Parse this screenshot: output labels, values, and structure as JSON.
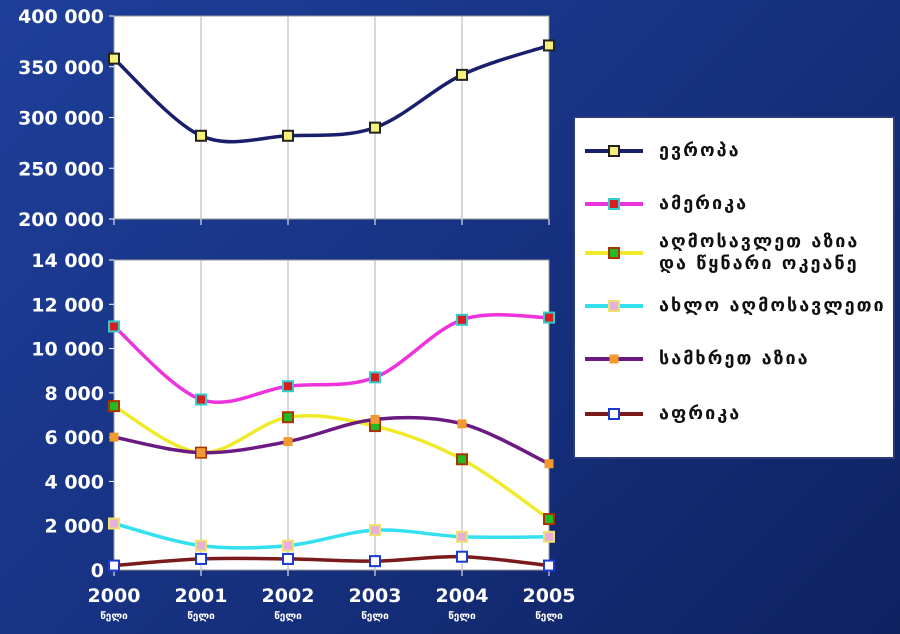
{
  "colors": {
    "background": "#1a3a8c",
    "europe": "#1a1f6b",
    "americas": "#ee33dd",
    "east_asia_pacific": "#f0ea2a",
    "middle_east": "#33e0f0",
    "south_asia": "#6a1a80",
    "africa": "#7a1a1a",
    "grid": "#b0b0b0"
  },
  "legend": [
    {
      "label": "ევროპა",
      "line_color": "#1a1f6b",
      "marker_fill": "#f5f07a",
      "marker_border": "#222222"
    },
    {
      "label": "ამერიკა",
      "line_color": "#ee33dd",
      "marker_fill": "#d62020",
      "marker_border": "#33cccc"
    },
    {
      "label": "აღმოსავლეთ აზია\nდა წყნარი ოკეანე",
      "line_color": "#f0ea2a",
      "marker_fill": "#22bb22",
      "marker_border": "#aa3300"
    },
    {
      "label": "ახლო აღმოსავლეთი",
      "line_color": "#33e0f0",
      "marker_fill": "#e6b0d8",
      "marker_border": "#f0e070"
    },
    {
      "label": "სამხრეთ აზია",
      "line_color": "#6a1a80",
      "marker_fill": "#f09a30",
      "marker_border": "#f09a30"
    },
    {
      "label": "აფრიკა",
      "line_color": "#7a1a1a",
      "marker_fill": "#ffffff",
      "marker_border": "#1a3ad0"
    }
  ],
  "chart_data": [
    {
      "type": "line",
      "x": [
        "2000",
        "2001",
        "2002",
        "2003",
        "2004",
        "2005"
      ],
      "ylim": [
        200000,
        400000
      ],
      "yticks": [
        "200 000",
        "250 000",
        "300 000",
        "350 000",
        "400 000"
      ],
      "grid": true,
      "series": [
        {
          "name": "ევროპა",
          "values": [
            358000,
            282000,
            282000,
            290000,
            342000,
            371000
          ]
        }
      ]
    },
    {
      "type": "line",
      "x": [
        "2000",
        "2001",
        "2002",
        "2003",
        "2004",
        "2005"
      ],
      "x_tick_labels": [
        {
          "year": "2000",
          "sub": "წელი"
        },
        {
          "year": "2001",
          "sub": "წელი"
        },
        {
          "year": "2002",
          "sub": "წელი"
        },
        {
          "year": "2003",
          "sub": "წელი"
        },
        {
          "year": "2004",
          "sub": "წელი"
        },
        {
          "year": "2005",
          "sub": "წელი"
        }
      ],
      "ylim": [
        0,
        14000
      ],
      "yticks": [
        "0",
        "2 000",
        "4 000",
        "6 000",
        "8 000",
        "10 000",
        "12 000",
        "14 000"
      ],
      "grid": true,
      "series": [
        {
          "name": "ამერიკა",
          "values": [
            11000,
            7700,
            8300,
            8700,
            11300,
            11400
          ]
        },
        {
          "name": "აღმოსავლეთ აზია და წყნარი ოკეანე",
          "values": [
            7400,
            5300,
            6900,
            6500,
            5000,
            2300
          ]
        },
        {
          "name": "ახლო აღმოსავლეთი",
          "values": [
            2100,
            1100,
            1100,
            1800,
            1500,
            1500
          ]
        },
        {
          "name": "სამხრეთ აზია",
          "values": [
            6000,
            5300,
            5800,
            6800,
            6600,
            4800
          ]
        },
        {
          "name": "აფრიკა",
          "values": [
            200,
            500,
            500,
            400,
            600,
            200
          ]
        }
      ]
    }
  ]
}
